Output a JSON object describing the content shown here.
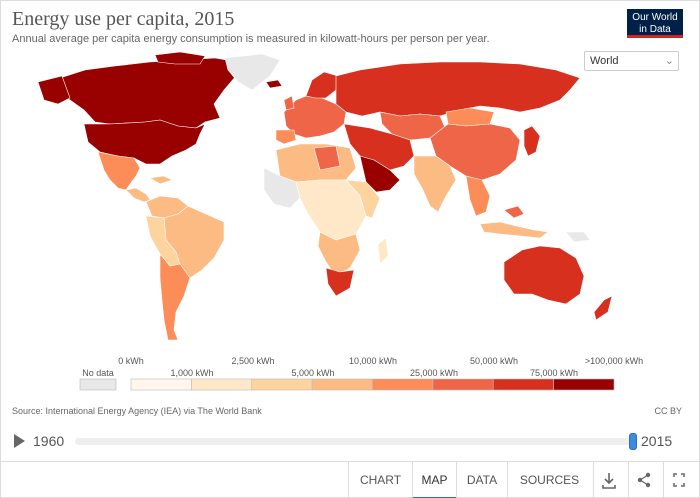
{
  "header": {
    "title": "Energy use per capita, 2015",
    "subtitle": "Annual average per capita energy consumption is measured in kilowatt-hours per person per year.",
    "logo_line1": "Our World",
    "logo_line2": "in Data"
  },
  "region_select": {
    "value": "World"
  },
  "legend": {
    "no_data_label": "No data",
    "upper_labels": [
      "0 kWh",
      "2,500 kWh",
      "10,000 kWh",
      "50,000 kWh",
      ">100,000 kWh"
    ],
    "lower_labels": [
      "1,000 kWh",
      "5,000 kWh",
      "25,000 kWh",
      "75,000 kWh"
    ],
    "colors": [
      "#fff7ec",
      "#fee8c8",
      "#fdd49e",
      "#fdbb84",
      "#fc8d59",
      "#ef6548",
      "#d7301f",
      "#990000"
    ],
    "no_data_color": "#e8e8e8"
  },
  "source": "Source: International Energy Agency (IEA) via The World Bank",
  "license": "CC BY",
  "timeline": {
    "start_year": "1960",
    "end_year": "2015",
    "position": 1.0
  },
  "tabs": [
    {
      "label": "CHART",
      "active": false
    },
    {
      "label": "MAP",
      "active": true
    },
    {
      "label": "DATA",
      "active": false
    },
    {
      "label": "SOURCES",
      "active": false
    }
  ],
  "icons": [
    "download-icon",
    "share-icon",
    "fullscreen-icon"
  ]
}
